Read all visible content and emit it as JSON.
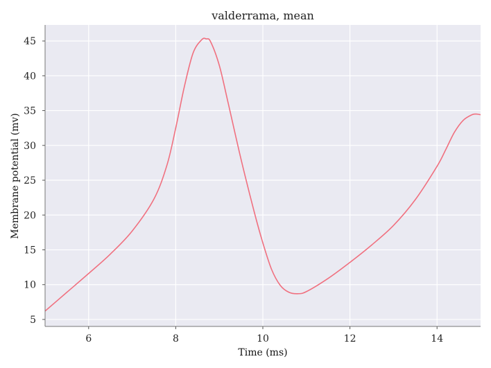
{
  "chart_data": {
    "type": "line",
    "title": "valderrama, mean",
    "xlabel": "Time (ms)",
    "ylabel": "Membrane potential (mv)",
    "xlim": [
      5,
      15
    ],
    "ylim": [
      4,
      47.3
    ],
    "xticks": [
      6,
      8,
      10,
      12,
      14
    ],
    "yticks": [
      5,
      10,
      15,
      20,
      25,
      30,
      35,
      40,
      45
    ],
    "grid": true,
    "background": "#eaeaf2",
    "line_color": "#f0707f",
    "series": [
      {
        "x": [
          5.0,
          5.5,
          6.0,
          6.5,
          7.0,
          7.5,
          7.8,
          8.0,
          8.2,
          8.4,
          8.6,
          8.7,
          8.8,
          9.0,
          9.2,
          9.5,
          9.8,
          10.0,
          10.2,
          10.4,
          10.6,
          10.8,
          11.0,
          11.5,
          12.0,
          12.5,
          13.0,
          13.5,
          14.0,
          14.2,
          14.4,
          14.6,
          14.8,
          14.9,
          15.0
        ],
        "y": [
          6.2,
          8.9,
          11.6,
          14.4,
          17.7,
          22.3,
          27.2,
          32.5,
          38.5,
          43.3,
          45.2,
          45.3,
          44.9,
          41.5,
          36.2,
          28.0,
          20.5,
          16.0,
          12.2,
          9.9,
          8.9,
          8.7,
          9.0,
          10.9,
          13.2,
          15.7,
          18.5,
          22.2,
          27.0,
          29.4,
          31.9,
          33.6,
          34.4,
          34.5,
          34.4
        ]
      }
    ]
  }
}
